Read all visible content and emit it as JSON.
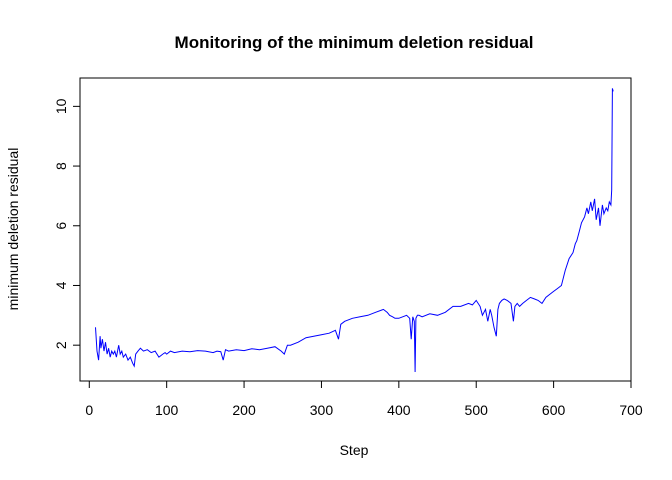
{
  "chart_data": {
    "type": "line",
    "title": "Monitoring of the minimum deletion residual",
    "xlabel": "Step",
    "ylabel": "minimum deletion residual",
    "xlim": [
      -12,
      700
    ],
    "ylim": [
      0.8,
      10.95
    ],
    "x_ticks": [
      0,
      100,
      200,
      300,
      400,
      500,
      600,
      700
    ],
    "y_ticks": [
      2,
      4,
      6,
      8,
      10
    ],
    "line_color": "#0000ff",
    "series": [
      {
        "x": [
          8,
          10,
          12,
          14,
          15,
          17,
          19,
          21,
          23,
          25,
          27,
          29,
          31,
          33,
          35,
          38,
          40,
          42,
          44,
          47,
          50,
          53,
          56,
          58,
          60,
          63,
          66,
          70,
          75,
          80,
          85,
          90,
          95,
          98,
          100,
          105,
          110,
          120,
          130,
          140,
          150,
          160,
          165,
          170,
          173,
          176,
          180,
          190,
          200,
          210,
          220,
          230,
          240,
          248,
          252,
          256,
          260,
          270,
          280,
          290,
          300,
          310,
          318,
          322,
          325,
          330,
          340,
          350,
          360,
          370,
          380,
          385,
          388,
          392,
          395,
          400,
          405,
          410,
          414,
          416,
          418,
          420,
          421,
          422,
          424,
          426,
          430,
          440,
          450,
          460,
          470,
          480,
          490,
          495,
          500,
          505,
          508,
          512,
          515,
          518,
          520,
          523,
          526,
          528,
          530,
          533,
          536,
          540,
          545,
          548,
          550,
          553,
          556,
          560,
          565,
          570,
          575,
          580,
          585,
          590,
          595,
          600,
          605,
          610,
          615,
          620,
          625,
          628,
          630,
          633,
          636,
          640,
          643,
          645,
          648,
          650,
          653,
          655,
          658,
          660,
          663,
          665,
          668,
          670,
          672,
          674,
          675,
          676,
          677
        ],
        "y": [
          2.6,
          1.8,
          1.5,
          2.3,
          1.9,
          2.2,
          1.8,
          2.1,
          1.7,
          1.9,
          1.6,
          1.8,
          1.7,
          1.8,
          1.6,
          2.0,
          1.7,
          1.8,
          1.6,
          1.7,
          1.5,
          1.6,
          1.4,
          1.3,
          1.7,
          1.8,
          1.9,
          1.8,
          1.85,
          1.75,
          1.8,
          1.6,
          1.7,
          1.75,
          1.7,
          1.8,
          1.75,
          1.8,
          1.78,
          1.82,
          1.8,
          1.75,
          1.8,
          1.78,
          1.5,
          1.85,
          1.8,
          1.85,
          1.82,
          1.88,
          1.85,
          1.9,
          1.95,
          1.8,
          1.7,
          2.0,
          2.0,
          2.1,
          2.25,
          2.3,
          2.35,
          2.4,
          2.5,
          2.2,
          2.7,
          2.8,
          2.9,
          2.95,
          3.0,
          3.1,
          3.2,
          3.1,
          3.0,
          2.95,
          2.9,
          2.9,
          2.95,
          3.0,
          2.9,
          2.2,
          2.95,
          2.8,
          1.1,
          2.9,
          3.0,
          3.0,
          2.95,
          3.05,
          3.0,
          3.1,
          3.3,
          3.3,
          3.4,
          3.35,
          3.5,
          3.3,
          3.0,
          3.2,
          2.8,
          3.2,
          3.0,
          2.6,
          2.3,
          3.2,
          3.4,
          3.5,
          3.55,
          3.5,
          3.4,
          2.8,
          3.3,
          3.4,
          3.3,
          3.4,
          3.5,
          3.6,
          3.55,
          3.5,
          3.4,
          3.6,
          3.7,
          3.8,
          3.9,
          4.0,
          4.5,
          4.9,
          5.1,
          5.4,
          5.5,
          5.8,
          6.1,
          6.3,
          6.6,
          6.4,
          6.8,
          6.5,
          6.9,
          6.2,
          6.6,
          6.0,
          6.7,
          6.4,
          6.6,
          6.5,
          6.8,
          6.7,
          7.2,
          10.6,
          10.5
        ]
      }
    ]
  }
}
